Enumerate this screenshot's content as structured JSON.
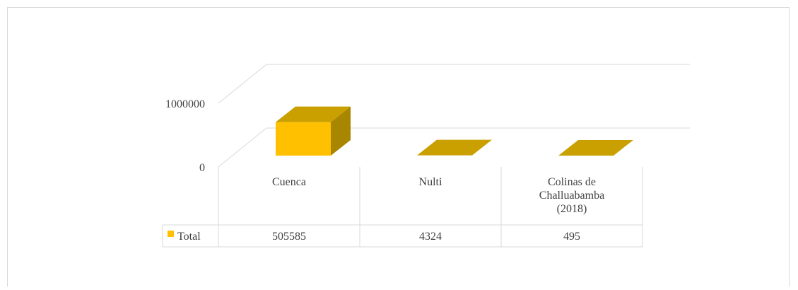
{
  "chart_data": {
    "type": "bar",
    "style": "3d-column-with-data-table",
    "categories": [
      [
        "Cuenca"
      ],
      [
        "Nulti"
      ],
      [
        "Colinas de",
        "Challuabamba",
        "(2018)"
      ]
    ],
    "series": [
      {
        "name": "Total",
        "values": [
          505585,
          4324,
          495
        ],
        "color": "#FFC000"
      }
    ],
    "y_ticks": [
      0,
      1000000
    ],
    "ylim": [
      0,
      1000000
    ],
    "grid": true,
    "legend_position": "data-table-left",
    "colors": {
      "bar_front": "#FFC000",
      "bar_top": "#C9A000",
      "bar_side": "#A88600",
      "grid": "#d9d9d9",
      "text": "#404040"
    }
  }
}
